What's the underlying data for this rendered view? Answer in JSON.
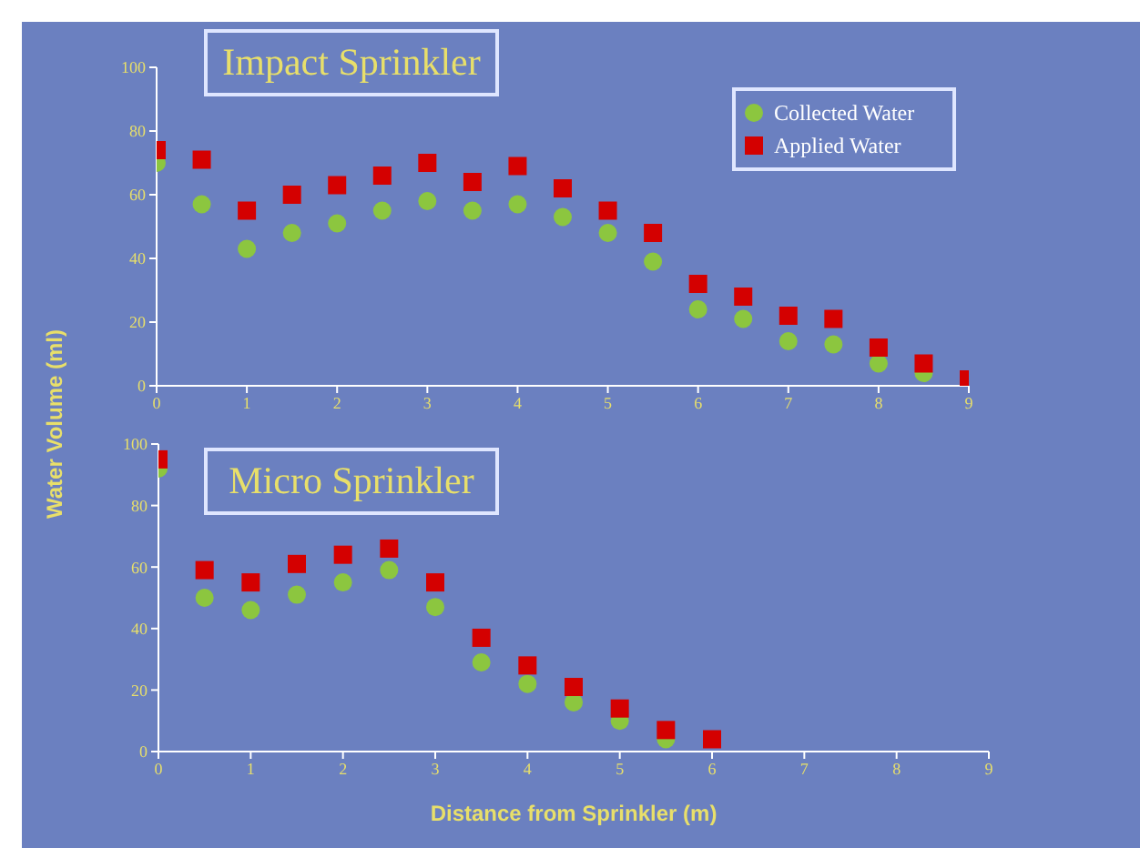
{
  "chart_data": [
    {
      "type": "scatter",
      "title": "Impact Sprinkler",
      "ylabel": "Water Volume (ml)",
      "x": [
        0,
        0.5,
        1,
        1.5,
        2,
        2.5,
        3,
        3.5,
        4,
        4.5,
        5,
        5.5,
        6,
        6.5,
        7,
        7.5,
        8,
        8.5,
        9
      ],
      "xlim": [
        0,
        9
      ],
      "xticks": [
        0,
        1,
        2,
        3,
        4,
        5,
        6,
        7,
        8,
        9
      ],
      "ylim": [
        0,
        100
      ],
      "yticks": [
        0,
        20,
        40,
        60,
        80,
        100
      ],
      "legend": "top right",
      "series": [
        {
          "name": "Collected Water",
          "color": "#8cc63f",
          "marker": "circle",
          "values": [
            70,
            57,
            43,
            48,
            51,
            55,
            58,
            55,
            57,
            53,
            48,
            39,
            24,
            21,
            14,
            13,
            7,
            4,
            null
          ]
        },
        {
          "name": "Applied Water",
          "color": "#d40000",
          "marker": "square",
          "values": [
            74,
            71,
            55,
            60,
            63,
            66,
            70,
            64,
            69,
            62,
            55,
            48,
            32,
            28,
            22,
            21,
            12,
            7,
            2
          ]
        }
      ]
    },
    {
      "type": "scatter",
      "title": "Micro Sprinkler",
      "xlabel": "Distance from Sprinkler (m)",
      "x": [
        0,
        0.5,
        1,
        1.5,
        2,
        2.5,
        3,
        3.5,
        4,
        4.5,
        5,
        5.5,
        6
      ],
      "xlim": [
        0,
        9
      ],
      "xticks": [
        0,
        1,
        2,
        3,
        4,
        5,
        6,
        7,
        8,
        9
      ],
      "ylim": [
        0,
        100
      ],
      "yticks": [
        0,
        20,
        40,
        60,
        80,
        100
      ],
      "series": [
        {
          "color": "#8cc63f",
          "marker": "circle",
          "values": [
            92,
            50,
            46,
            51,
            55,
            59,
            47,
            29,
            22,
            16,
            10,
            4,
            null
          ]
        },
        {
          "color": "#d40000",
          "marker": "square",
          "values": [
            95,
            59,
            55,
            61,
            64,
            66,
            55,
            37,
            28,
            21,
            14,
            7,
            4
          ]
        }
      ]
    }
  ]
}
